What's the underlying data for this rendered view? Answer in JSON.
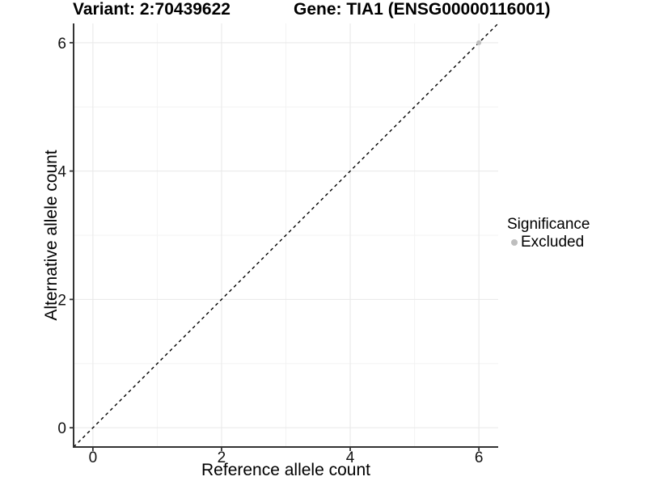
{
  "figure": {
    "title_left": "Variant: 2:70439622",
    "title_right": "Gene: TIA1 (ENSG00000116001)"
  },
  "chart_data": {
    "type": "scatter",
    "title": "Variant: 2:70439622   Gene: TIA1 (ENSG00000116001)",
    "xlabel": "Reference allele count",
    "ylabel": "Alternative allele count",
    "xlim": [
      -0.3,
      6.3
    ],
    "ylim": [
      -0.3,
      6.3
    ],
    "x_major_ticks": [
      0,
      2,
      4,
      6
    ],
    "y_major_ticks": [
      0,
      2,
      4,
      6
    ],
    "x_minor_ticks": [
      1,
      3,
      5
    ],
    "y_minor_ticks": [
      1,
      3,
      5
    ],
    "grid": true,
    "points": [
      {
        "x": 6,
        "y": 6,
        "series": "Excluded",
        "color": "#bebebe"
      }
    ],
    "reference_line": {
      "slope": 1,
      "intercept": 0,
      "style": "dashed",
      "color": "#000000"
    },
    "legend": {
      "position": "right",
      "title": "Significance",
      "entries": [
        {
          "label": "Excluded",
          "color": "#bebebe",
          "marker": "circle"
        }
      ]
    },
    "colors": {
      "axis_line": "#333333",
      "tick_label": "#111111",
      "grid_major": "#e8e8e8",
      "grid_minor": "#f3f3f3",
      "background": "#ffffff"
    }
  }
}
